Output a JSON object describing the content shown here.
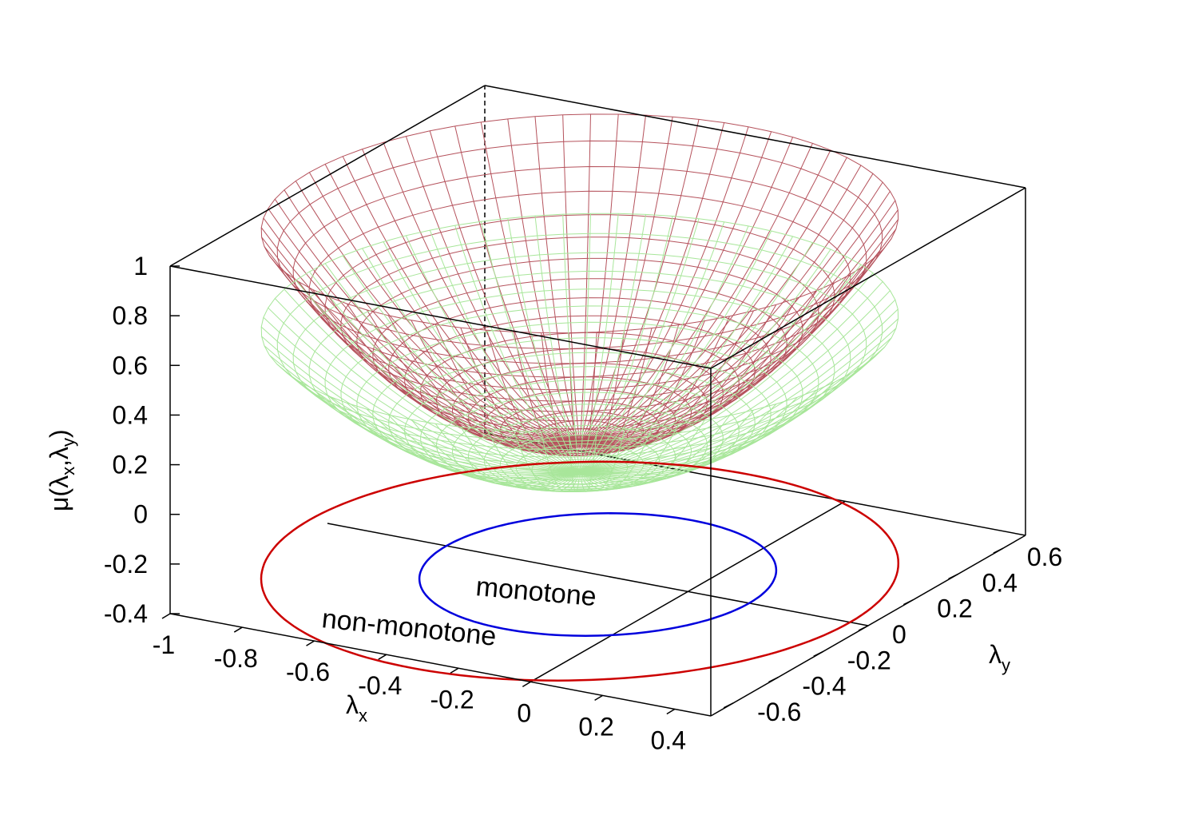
{
  "chart_data": {
    "type": "surface3d",
    "title": "",
    "zlabel": {
      "base": "μ(λ",
      "x": "x",
      "comma": ",λ",
      "y": "y",
      "close": ")"
    },
    "xlabel": {
      "base": "λ",
      "sub": "x"
    },
    "ylabel": {
      "base": "λ",
      "sub": "y"
    },
    "xlim": [
      -1,
      0.5
    ],
    "ylim": [
      -0.7,
      0.7
    ],
    "zlim": [
      -0.4,
      1
    ],
    "xticks": [
      "-1",
      "-0.8",
      "-0.6",
      "-0.4",
      "-0.2",
      "0",
      "0.2",
      "0.4"
    ],
    "xtick_values": [
      -1,
      -0.8,
      -0.6,
      -0.4,
      -0.2,
      0,
      0.2,
      0.4
    ],
    "yticks": [
      "-0.6",
      "-0.4",
      "-0.2",
      "0",
      "0.2",
      "0.4",
      "0.6"
    ],
    "ytick_values": [
      -0.6,
      -0.4,
      -0.2,
      0,
      0.2,
      0.4,
      0.6
    ],
    "zticks": [
      "-0.4",
      "-0.2",
      "0",
      "0.2",
      "0.4",
      "0.6",
      "0.8",
      "1"
    ],
    "ztick_values": [
      -0.4,
      -0.2,
      0,
      0.2,
      0.4,
      0.6,
      0.8,
      1
    ],
    "surfaces": [
      {
        "name": "",
        "color": "#b5525c",
        "center_x": -0.3,
        "center_y": 0,
        "radius": 0.75,
        "z_min": 0.12,
        "z_max": 1.0
      },
      {
        "name": "",
        "color": "#a8e69a",
        "center_x": -0.3,
        "center_y": 0,
        "radius": 0.75,
        "z_min": 0.0,
        "z_max": 0.6
      }
    ],
    "contours": [
      {
        "label": "monotone",
        "color": "#0000dd",
        "center_x": -0.25,
        "center_y": 0.0,
        "radius": 0.42,
        "z": -0.4
      },
      {
        "label": "non-monotone",
        "color": "#cc0000",
        "center_x": -0.3,
        "center_y": 0.0,
        "radius": 0.75,
        "z": -0.4
      }
    ]
  }
}
